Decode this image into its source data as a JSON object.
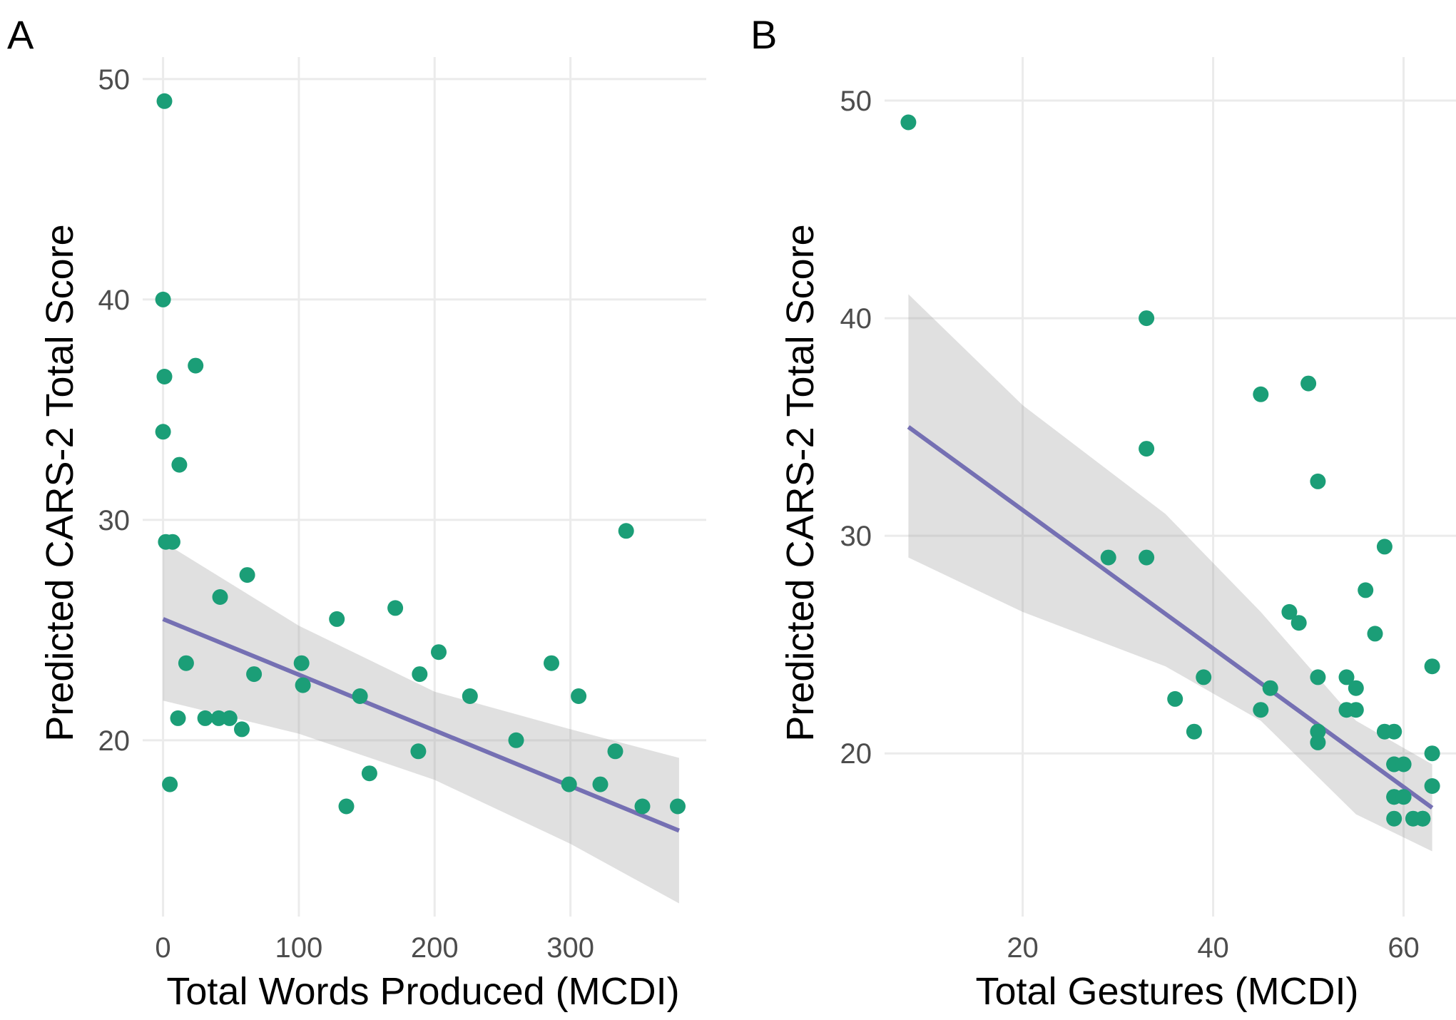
{
  "chart_data": [
    {
      "type": "scatter",
      "panel_tag": "A",
      "xlabel": "Total Words Produced (MCDI)",
      "ylabel": "Predicted CARS-2 Total Score",
      "xlim": [
        -15,
        400
      ],
      "ylim": [
        12,
        51
      ],
      "xticks": [
        0,
        100,
        200,
        300
      ],
      "xtick_labels": [
        "0",
        "100",
        "200",
        "300"
      ],
      "yticks": [
        20,
        30,
        40,
        50
      ],
      "ytick_labels": [
        "20",
        "30",
        "40",
        "50"
      ],
      "grid": true,
      "x": [
        1,
        0,
        1,
        0,
        12,
        2,
        7,
        5,
        17,
        11,
        24,
        31,
        42,
        49,
        41,
        58,
        62,
        67,
        102,
        103,
        128,
        135,
        145,
        152,
        171,
        189,
        188,
        203,
        226,
        260,
        286,
        299,
        306,
        322,
        333,
        353,
        379,
        341
      ],
      "y": [
        49,
        40,
        36.5,
        34,
        32.5,
        29,
        29,
        18,
        23.5,
        21,
        37,
        21,
        26.5,
        21,
        21,
        20.5,
        27.5,
        23,
        23.5,
        22.5,
        25.5,
        17,
        22,
        18.5,
        26,
        23,
        19.5,
        24,
        22,
        20,
        23.5,
        18,
        22,
        18,
        19.5,
        17,
        17,
        29.5
      ],
      "fit": {
        "x": [
          0,
          380
        ],
        "y": [
          25.5,
          15.9
        ]
      },
      "band": {
        "x": [
          0,
          100,
          200,
          300,
          380
        ],
        "upper": [
          29.0,
          25.2,
          22.2,
          20.5,
          19.2
        ],
        "lower": [
          21.8,
          20.3,
          18.2,
          15.3,
          12.6
        ]
      }
    },
    {
      "type": "scatter",
      "panel_tag": "B",
      "xlabel": "Total Gestures (MCDI)",
      "ylabel": "Predicted CARS-2 Total Score",
      "xlim": [
        5.5,
        65.5
      ],
      "ylim": [
        12.5,
        52
      ],
      "xticks": [
        20,
        40,
        60
      ],
      "xtick_labels": [
        "20",
        "40",
        "60"
      ],
      "yticks": [
        20,
        30,
        40,
        50
      ],
      "ytick_labels": [
        "20",
        "30",
        "40",
        "50"
      ],
      "grid": true,
      "x": [
        8,
        29,
        33,
        33,
        33,
        36,
        38,
        39,
        45,
        45,
        46,
        48,
        49,
        50,
        51,
        51,
        51,
        51,
        54,
        54,
        55,
        55,
        56,
        57,
        58,
        58,
        59,
        59,
        59,
        59,
        59,
        59,
        60,
        60,
        61,
        62,
        62,
        63,
        63,
        63
      ],
      "y": [
        49,
        29,
        40,
        34,
        29,
        22.5,
        21,
        23.5,
        36.5,
        22,
        23,
        26.5,
        26,
        37,
        32.5,
        23.5,
        21,
        20.5,
        23.5,
        22,
        23,
        22,
        27.5,
        25.5,
        29.5,
        21,
        21,
        19.5,
        19.5,
        18,
        18,
        17,
        19.5,
        18,
        17,
        17,
        17,
        24,
        20,
        18.5
      ],
      "fit": {
        "x": [
          8,
          63
        ],
        "y": [
          35.0,
          17.5
        ]
      },
      "band": {
        "x": [
          8,
          20,
          35,
          45,
          55,
          63
        ],
        "upper": [
          41.1,
          36.0,
          31.0,
          26.5,
          21.5,
          19.5
        ],
        "lower": [
          29.0,
          26.5,
          24.0,
          21.5,
          17.2,
          15.5
        ]
      }
    }
  ]
}
